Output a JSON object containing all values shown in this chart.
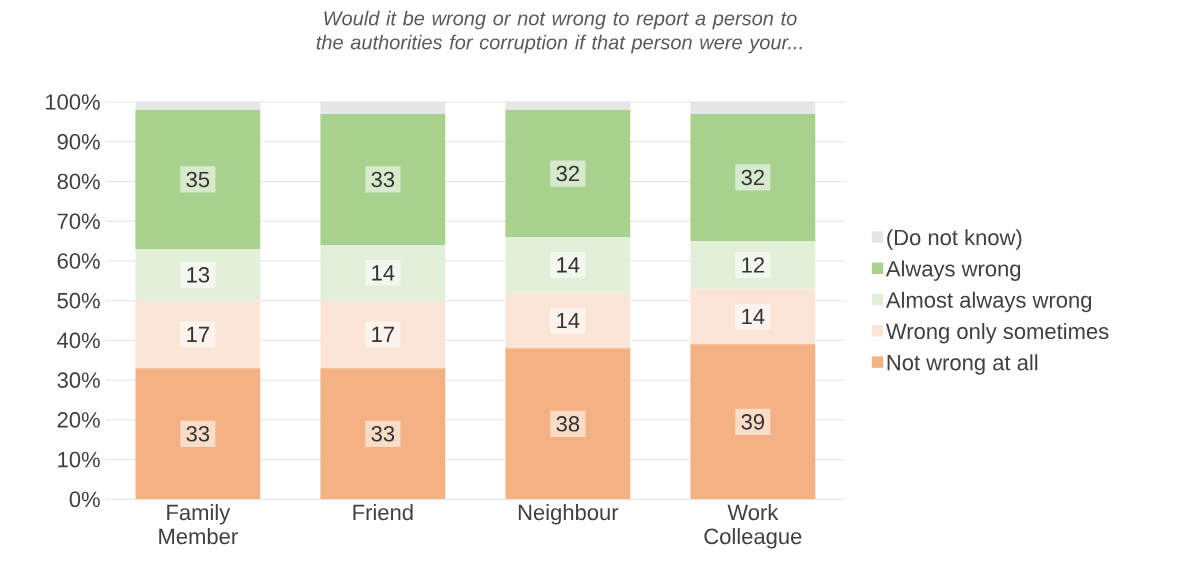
{
  "chart_data": {
    "type": "bar",
    "stacked": true,
    "title": "Would it be wrong or not wrong to report a person to the authorities for corruption if that person were your...",
    "categories": [
      "Family Member",
      "Friend",
      "Neighbour",
      "Work Colleague"
    ],
    "series": [
      {
        "name": "Not wrong at all",
        "color": "#f4b183",
        "values": [
          33,
          33,
          38,
          39
        ],
        "value_labels": [
          "33",
          "33",
          "38",
          "39"
        ]
      },
      {
        "name": "Wrong only sometimes",
        "color": "#fbe5d6",
        "values": [
          17,
          17,
          14,
          14
        ],
        "value_labels": [
          "17",
          "17",
          "14",
          "14"
        ]
      },
      {
        "name": "Almost always wrong",
        "color": "#e2f0d9",
        "values": [
          13,
          14,
          14,
          12
        ],
        "value_labels": [
          "13",
          "14",
          "14",
          "12"
        ]
      },
      {
        "name": "Always wrong",
        "color": "#a9d18e",
        "values": [
          35,
          33,
          32,
          32
        ],
        "value_labels": [
          "35",
          "33",
          "32",
          "32"
        ]
      },
      {
        "name": "(Do not know)",
        "color": "#e7e6e6",
        "values": [
          2,
          3,
          2,
          3
        ]
      }
    ],
    "ylim": [
      0,
      100
    ],
    "yticks": [
      {
        "value": 0,
        "label": "0%"
      },
      {
        "value": 10,
        "label": "10%"
      },
      {
        "value": 20,
        "label": "20%"
      },
      {
        "value": 30,
        "label": "30%"
      },
      {
        "value": 40,
        "label": "40%"
      },
      {
        "value": 50,
        "label": "50%"
      },
      {
        "value": 60,
        "label": "60%"
      },
      {
        "value": 70,
        "label": "70%"
      },
      {
        "value": 80,
        "label": "80%"
      },
      {
        "value": 90,
        "label": "90%"
      },
      {
        "value": 100,
        "label": "100%"
      }
    ],
    "grid": "y",
    "legend": "right"
  }
}
